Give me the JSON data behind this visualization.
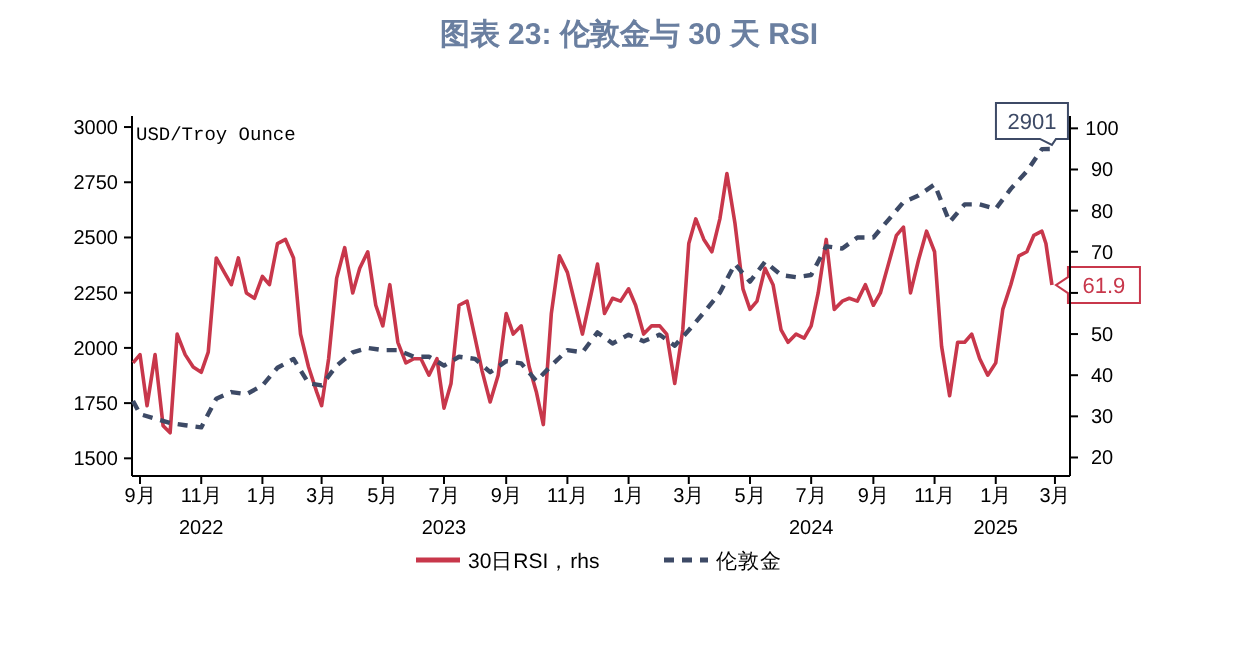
{
  "chart_data": {
    "type": "line",
    "title": "图表 23: 伦敦金与 30 天 RSI",
    "ylabel": "USD/Troy Ounce",
    "legend": "bottom",
    "xlim": [
      "2022-08-24",
      "2025-03-16"
    ],
    "ylim": [
      1420,
      3050
    ],
    "yticks": [
      1500,
      1750,
      2000,
      2250,
      2500,
      2750,
      3000
    ],
    "y2lim": [
      15.5,
      103
    ],
    "y2ticks": [
      20,
      30,
      40,
      50,
      {
        "value": 60,
        "label": null
      },
      70,
      80,
      90,
      100
    ],
    "xticks": [
      {
        "value": "2022-09-01",
        "label": "9月"
      },
      {
        "value": "2022-11-01",
        "label": "11月\n2022"
      },
      {
        "value": "2023-01-01",
        "label": "1月"
      },
      {
        "value": "2023-03-01",
        "label": "3月"
      },
      {
        "value": "2023-05-01",
        "label": "5月"
      },
      {
        "value": "2023-07-01",
        "label": "7月\n2023"
      },
      {
        "value": "2023-09-01",
        "label": "9月"
      },
      {
        "value": "2023-11-01",
        "label": "11月"
      },
      {
        "value": "2024-01-01",
        "label": "1月"
      },
      {
        "value": "2024-03-01",
        "label": "3月"
      },
      {
        "value": "2024-05-01",
        "label": "5月"
      },
      {
        "value": "2024-07-01",
        "label": "7月\n2024"
      },
      {
        "value": "2024-09-01",
        "label": "9月"
      },
      {
        "value": "2024-11-01",
        "label": "11月"
      },
      {
        "value": "2025-01-01",
        "label": "1月\n2025"
      },
      {
        "value": "2025-03-01",
        "label": "3月"
      }
    ],
    "series": [
      {
        "name": "30日RSI，rhs",
        "color": "#c8374b",
        "axis": "y2",
        "line_style": "solid",
        "x": [
          "2022-08-25",
          "2022-09-01",
          "2022-09-08",
          "2022-09-16",
          "2022-09-24",
          "2022-10-01",
          "2022-10-08",
          "2022-10-16",
          "2022-10-24",
          "2022-11-01",
          "2022-11-08",
          "2022-11-16",
          "2022-11-24",
          "2022-12-01",
          "2022-12-08",
          "2022-12-16",
          "2022-12-24",
          "2023-01-01",
          "2023-01-08",
          "2023-01-16",
          "2023-01-24",
          "2023-02-01",
          "2023-02-08",
          "2023-02-16",
          "2023-02-24",
          "2023-03-01",
          "2023-03-08",
          "2023-03-16",
          "2023-03-24",
          "2023-04-01",
          "2023-04-08",
          "2023-04-16",
          "2023-04-24",
          "2023-05-01",
          "2023-05-08",
          "2023-05-16",
          "2023-05-24",
          "2023-06-01",
          "2023-06-08",
          "2023-06-16",
          "2023-06-24",
          "2023-07-01",
          "2023-07-08",
          "2023-07-16",
          "2023-07-24",
          "2023-08-01",
          "2023-08-08",
          "2023-08-16",
          "2023-08-24",
          "2023-09-01",
          "2023-09-08",
          "2023-09-16",
          "2023-09-24",
          "2023-10-01",
          "2023-10-08",
          "2023-10-16",
          "2023-10-24",
          "2023-11-01",
          "2023-11-08",
          "2023-11-16",
          "2023-11-24",
          "2023-12-01",
          "2023-12-08",
          "2023-12-16",
          "2023-12-24",
          "2024-01-01",
          "2024-01-08",
          "2024-01-16",
          "2024-01-24",
          "2024-02-01",
          "2024-02-08",
          "2024-02-16",
          "2024-02-24",
          "2024-03-01",
          "2024-03-08",
          "2024-03-16",
          "2024-03-24",
          "2024-04-01",
          "2024-04-08",
          "2024-04-16",
          "2024-04-24",
          "2024-05-01",
          "2024-05-08",
          "2024-05-16",
          "2024-05-24",
          "2024-06-01",
          "2024-06-08",
          "2024-06-16",
          "2024-06-24",
          "2024-07-01",
          "2024-07-08",
          "2024-07-16",
          "2024-07-24",
          "2024-08-01",
          "2024-08-08",
          "2024-08-16",
          "2024-08-24",
          "2024-09-01",
          "2024-09-08",
          "2024-09-16",
          "2024-09-24",
          "2024-10-01",
          "2024-10-08",
          "2024-10-16",
          "2024-10-24",
          "2024-11-01",
          "2024-11-08",
          "2024-11-16",
          "2024-11-24",
          "2024-12-01",
          "2024-12-08",
          "2024-12-16",
          "2024-12-24",
          "2025-01-01",
          "2025-01-08",
          "2025-01-16",
          "2025-01-24",
          "2025-02-01",
          "2025-02-08",
          "2025-02-16",
          "2025-02-20",
          "2025-02-26"
        ],
        "values": [
          43,
          45,
          32.6,
          45,
          27.7,
          26,
          50,
          45,
          42,
          40.7,
          45.6,
          68.5,
          65,
          62,
          68.5,
          60,
          58.7,
          64,
          62,
          72,
          73,
          68.5,
          50,
          42,
          36,
          32.6,
          44,
          63.6,
          71,
          60,
          66,
          70,
          57,
          52,
          62,
          48,
          43,
          44,
          44,
          40,
          44,
          32,
          38,
          57,
          58,
          49,
          41,
          33.5,
          40,
          55,
          50,
          52,
          42,
          36,
          28,
          55,
          69,
          65,
          58,
          50,
          59,
          67,
          55,
          58.7,
          58,
          61,
          57,
          50,
          52,
          52,
          50,
          38,
          51,
          72,
          78,
          73,
          70,
          78,
          89,
          77,
          61,
          56,
          58,
          66,
          62,
          51,
          48,
          50,
          49,
          52,
          60,
          73,
          56,
          58,
          58.7,
          58,
          62,
          57,
          60,
          67,
          74,
          76,
          60,
          68,
          75,
          70,
          47,
          35,
          48,
          48,
          50,
          44,
          40,
          43,
          56,
          62,
          69,
          70,
          74,
          75,
          72,
          61.9
        ],
        "value_labels": [
          null,
          null,
          null,
          null,
          null,
          null,
          null,
          null,
          null,
          null,
          null,
          null,
          null,
          null,
          null,
          null,
          null,
          null,
          null,
          null,
          null,
          null,
          null,
          null,
          null,
          null,
          null,
          null,
          null,
          null,
          null,
          null,
          null,
          null,
          null,
          null,
          null,
          null,
          null,
          null,
          null,
          null,
          null,
          null,
          null,
          null,
          null,
          null,
          null,
          null,
          null,
          null,
          null,
          null,
          null,
          null,
          null,
          null,
          null,
          null,
          null,
          null,
          null,
          null,
          null,
          null,
          null,
          null,
          null,
          null,
          null,
          null,
          null,
          null,
          null,
          null,
          null,
          null,
          null,
          null,
          null,
          null,
          null,
          null,
          null,
          null,
          null,
          null,
          null,
          null,
          null,
          null,
          null,
          null,
          null,
          null,
          null,
          null,
          null,
          null,
          null,
          null,
          null,
          null,
          null,
          null,
          null,
          null,
          null,
          null,
          null,
          null,
          null,
          null,
          null,
          null,
          null,
          null,
          null,
          null,
          null,
          "61.9"
        ]
      },
      {
        "name": "伦敦金",
        "color": "#3d4a66",
        "line_style": "dashed",
        "x": [
          "2022-08-25",
          "2022-09-01",
          "2022-09-16",
          "2022-10-01",
          "2022-10-16",
          "2022-11-01",
          "2022-11-16",
          "2022-12-01",
          "2022-12-16",
          "2023-01-01",
          "2023-01-16",
          "2023-02-01",
          "2023-02-16",
          "2023-03-01",
          "2023-03-16",
          "2023-04-01",
          "2023-04-16",
          "2023-05-01",
          "2023-05-16",
          "2023-06-01",
          "2023-06-16",
          "2023-07-01",
          "2023-07-16",
          "2023-08-01",
          "2023-08-16",
          "2023-09-01",
          "2023-09-16",
          "2023-10-01",
          "2023-10-16",
          "2023-11-01",
          "2023-11-16",
          "2023-12-01",
          "2023-12-16",
          "2024-01-01",
          "2024-01-16",
          "2024-02-01",
          "2024-02-16",
          "2024-03-01",
          "2024-03-16",
          "2024-04-01",
          "2024-04-16",
          "2024-05-01",
          "2024-05-16",
          "2024-06-01",
          "2024-06-16",
          "2024-07-01",
          "2024-07-16",
          "2024-08-01",
          "2024-08-16",
          "2024-09-01",
          "2024-09-16",
          "2024-10-01",
          "2024-10-16",
          "2024-11-01",
          "2024-11-16",
          "2024-12-01",
          "2024-12-16",
          "2025-01-01",
          "2025-01-16",
          "2025-02-01",
          "2025-02-16",
          "2025-02-26"
        ],
        "values": [
          1760,
          1700,
          1680,
          1660,
          1650,
          1640,
          1770,
          1800,
          1790,
          1830,
          1910,
          1950,
          1840,
          1830,
          1920,
          1980,
          2000,
          1990,
          1990,
          1960,
          1960,
          1920,
          1960,
          1950,
          1890,
          1940,
          1930,
          1850,
          1920,
          1990,
          1980,
          2070,
          2020,
          2060,
          2030,
          2060,
          2010,
          2080,
          2160,
          2250,
          2380,
          2300,
          2390,
          2330,
          2320,
          2330,
          2460,
          2450,
          2500,
          2500,
          2580,
          2660,
          2690,
          2740,
          2570,
          2650,
          2650,
          2630,
          2720,
          2800,
          2900,
          2901
        ],
        "value_labels": [
          null,
          null,
          null,
          null,
          null,
          null,
          null,
          null,
          null,
          null,
          null,
          null,
          null,
          null,
          null,
          null,
          null,
          null,
          null,
          null,
          null,
          null,
          null,
          null,
          null,
          null,
          null,
          null,
          null,
          null,
          null,
          null,
          null,
          null,
          null,
          null,
          null,
          null,
          null,
          null,
          null,
          null,
          null,
          null,
          null,
          null,
          null,
          null,
          null,
          null,
          null,
          null,
          null,
          null,
          null,
          null,
          null,
          null,
          null,
          null,
          null,
          "2901"
        ]
      }
    ]
  }
}
